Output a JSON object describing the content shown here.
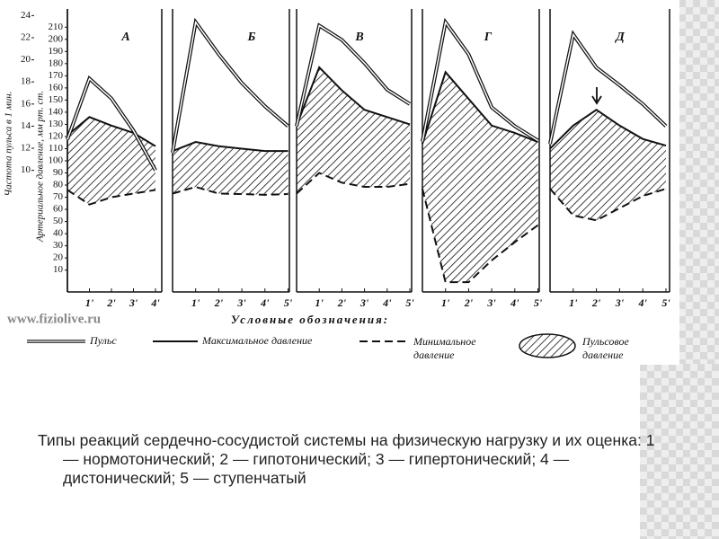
{
  "chart_data": {
    "type": "line",
    "y_label": "Артериальное давление, мм рт. ст.",
    "y2_label": "Частота пульса в 1 мин.",
    "ylim": [
      -8,
      225
    ],
    "yticks": [
      10,
      20,
      30,
      40,
      50,
      60,
      70,
      80,
      90,
      100,
      110,
      120,
      130,
      140,
      150,
      160,
      170,
      180,
      190,
      200,
      210
    ],
    "y2lim": [
      -1,
      24.6
    ],
    "y2ticks": [
      10,
      12,
      14,
      16,
      18,
      20,
      22,
      24
    ],
    "panels": [
      {
        "title": "А",
        "x": [
          0,
          1,
          2,
          3,
          4
        ],
        "xticks": [
          {
            "value": 1,
            "label": "1'"
          },
          {
            "value": 2,
            "label": "2'"
          },
          {
            "value": 3,
            "label": "3'"
          },
          {
            "value": 4,
            "label": "4'"
          }
        ],
        "pulse": [
          12.8,
          18.3,
          16.5,
          13.6,
          10
        ],
        "max": [
          121,
          136,
          129,
          123,
          112
        ],
        "min": [
          76,
          64,
          70,
          73,
          76
        ]
      },
      {
        "title": "Б",
        "x": [
          0,
          1,
          2,
          3,
          4,
          5
        ],
        "xticks": [
          {
            "value": 1,
            "label": "1'"
          },
          {
            "value": 2,
            "label": "2'"
          },
          {
            "value": 3,
            "label": "3'"
          },
          {
            "value": 4,
            "label": "4'"
          },
          {
            "value": 5,
            "label": "5'"
          }
        ],
        "pulse": [
          11.6,
          23.4,
          20.5,
          17.9,
          15.8,
          14
        ],
        "max": [
          108,
          115.5,
          112,
          110,
          108,
          108
        ],
        "min": [
          73,
          78.5,
          73,
          72.6,
          72,
          72.6
        ]
      },
      {
        "title": "В",
        "x": [
          0,
          1,
          2,
          3,
          4,
          5
        ],
        "xticks": [
          {
            "value": 1,
            "label": "1'"
          },
          {
            "value": 2,
            "label": "2'"
          },
          {
            "value": 3,
            "label": "3'"
          },
          {
            "value": 4,
            "label": "4'"
          },
          {
            "value": 5,
            "label": "5'"
          }
        ],
        "pulse": [
          14,
          23.1,
          21.8,
          19.7,
          17.3,
          16
        ],
        "max": [
          129,
          177,
          158,
          142,
          136,
          130
        ],
        "min": [
          73,
          90,
          82,
          78.5,
          78.5,
          81
        ]
      },
      {
        "title": "Г",
        "x": [
          0,
          1,
          2,
          3,
          4,
          5
        ],
        "xticks": [
          {
            "value": 1,
            "label": "1'"
          },
          {
            "value": 2,
            "label": "2'"
          },
          {
            "value": 3,
            "label": "3'"
          },
          {
            "value": 4,
            "label": "4'"
          },
          {
            "value": 5,
            "label": "5'"
          }
        ],
        "pulse": [
          12.6,
          23.4,
          20.5,
          15.7,
          14,
          12.7
        ],
        "max": [
          114,
          173,
          151,
          129,
          123,
          115.5
        ],
        "min": [
          77,
          0,
          0,
          18,
          33,
          47
        ]
      },
      {
        "title": "Д",
        "x": [
          0,
          1,
          2,
          3,
          4,
          5
        ],
        "xticks": [
          {
            "value": 1,
            "label": "1'"
          },
          {
            "value": 2,
            "label": "2'"
          },
          {
            "value": 3,
            "label": "3'"
          },
          {
            "value": 4,
            "label": "4'"
          },
          {
            "value": 5,
            "label": "5'"
          }
        ],
        "pulse": [
          12.4,
          22.3,
          19.3,
          17.7,
          16,
          14
        ],
        "max": [
          110,
          129,
          142,
          129,
          118,
          112.5
        ],
        "min": [
          77,
          55,
          51,
          61,
          71,
          77
        ]
      }
    ],
    "legend": {
      "heading": "Условные обозначения:",
      "pulse": "Пульс",
      "max": "Максимальное давление",
      "min": [
        "Минимальное",
        "давление"
      ],
      "pulse_pressure": [
        "Пульсовое",
        "давление"
      ]
    },
    "watermark": "www.fiziolive.ru",
    "caption": "Типы реакций сердечно-сосудистой системы на физическую нагрузку и их оценка: 1 — нормотонический; 2 — гипотонический; 3 — гипертонический; 4 — дистонический; 5 — ступенчатый"
  }
}
